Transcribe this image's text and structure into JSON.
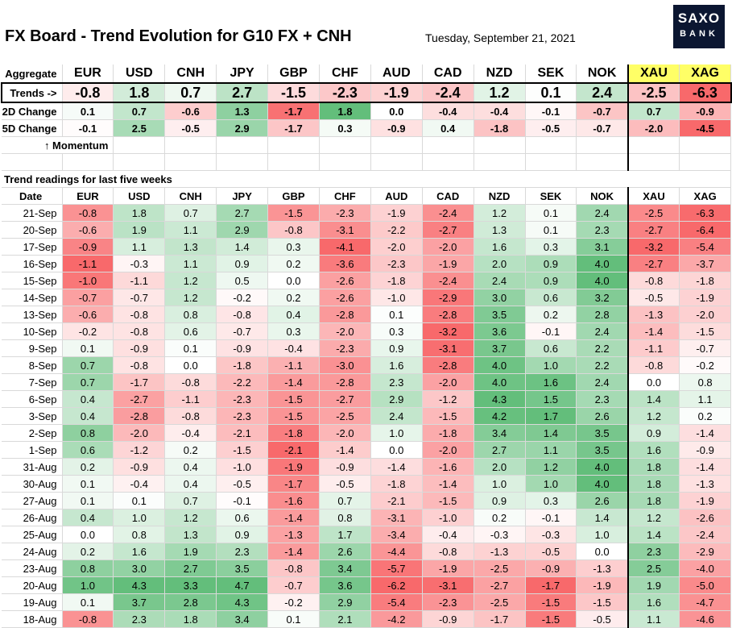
{
  "title": "FX Board - Trend Evolution for G10 FX + CNH",
  "date": "Tuesday, September 21, 2021",
  "logo": {
    "line1": "SAXO",
    "line2": "BANK"
  },
  "chart_data": {
    "type": "table",
    "aggregate_label": "Aggregate",
    "columns": [
      "EUR",
      "USD",
      "CNH",
      "JPY",
      "GBP",
      "CHF",
      "AUD",
      "CAD",
      "NZD",
      "SEK",
      "NOK",
      "XAU",
      "XAG"
    ],
    "summary_rows": [
      {
        "label": "Trends ->",
        "values": [
          -0.8,
          1.8,
          0.7,
          2.7,
          -1.5,
          -2.3,
          -1.9,
          -2.4,
          1.2,
          0.1,
          2.4,
          -2.5,
          -6.3
        ]
      },
      {
        "label": "2D Change",
        "values": [
          0.1,
          0.7,
          -0.6,
          1.3,
          -1.7,
          1.8,
          0.0,
          -0.4,
          -0.4,
          -0.1,
          -0.7,
          0.7,
          -0.9
        ]
      },
      {
        "label": "5D Change",
        "values": [
          -0.1,
          2.5,
          -0.5,
          2.9,
          -1.7,
          0.3,
          -0.9,
          0.4,
          -1.8,
          -0.5,
          -0.7,
          -2.0,
          -4.5
        ]
      }
    ],
    "momentum_label": "↑ Momentum",
    "weeks_title": "Trend readings for last five weeks",
    "date_header": "Date",
    "rows": [
      {
        "date": "21-Sep",
        "values": [
          -0.8,
          1.8,
          0.7,
          2.7,
          -1.5,
          -2.3,
          -1.9,
          -2.4,
          1.2,
          0.1,
          2.4,
          -2.5,
          -6.3
        ]
      },
      {
        "date": "20-Sep",
        "values": [
          -0.6,
          1.9,
          1.1,
          2.9,
          -0.8,
          -3.1,
          -2.2,
          -2.7,
          1.3,
          0.1,
          2.3,
          -2.7,
          -6.4
        ]
      },
      {
        "date": "17-Sep",
        "values": [
          -0.9,
          1.1,
          1.3,
          1.4,
          0.3,
          -4.1,
          -2.0,
          -2.0,
          1.6,
          0.3,
          3.1,
          -3.2,
          -5.4
        ]
      },
      {
        "date": "16-Sep",
        "values": [
          -1.1,
          -0.3,
          1.1,
          0.9,
          0.2,
          -3.6,
          -2.3,
          -1.9,
          2.0,
          0.9,
          4.0,
          -2.7,
          -3.7
        ]
      },
      {
        "date": "15-Sep",
        "values": [
          -1.0,
          -1.1,
          1.2,
          0.5,
          0.0,
          -2.6,
          -1.8,
          -2.4,
          2.4,
          0.9,
          4.0,
          -0.8,
          -1.8
        ]
      },
      {
        "date": "14-Sep",
        "values": [
          -0.7,
          -0.7,
          1.2,
          -0.2,
          0.2,
          -2.6,
          -1.0,
          -2.9,
          3.0,
          0.6,
          3.2,
          -0.5,
          -1.9
        ]
      },
      {
        "date": "13-Sep",
        "values": [
          -0.6,
          -0.8,
          0.8,
          -0.8,
          0.4,
          -2.8,
          0.1,
          -2.8,
          3.5,
          0.2,
          2.8,
          -1.3,
          -2.0
        ]
      },
      {
        "date": "10-Sep",
        "values": [
          -0.2,
          -0.8,
          0.6,
          -0.7,
          0.3,
          -2.0,
          0.3,
          -3.2,
          3.6,
          -0.1,
          2.4,
          -1.4,
          -1.5
        ]
      },
      {
        "date": "9-Sep",
        "values": [
          0.1,
          -0.9,
          0.1,
          -0.9,
          -0.4,
          -2.3,
          0.9,
          -3.1,
          3.7,
          0.6,
          2.2,
          -1.1,
          -0.7
        ]
      },
      {
        "date": "8-Sep",
        "values": [
          0.7,
          -0.8,
          0.0,
          -1.8,
          -1.1,
          -3.0,
          1.6,
          -2.8,
          4.0,
          1.0,
          2.2,
          -0.8,
          -0.2
        ]
      },
      {
        "date": "7-Sep",
        "values": [
          0.7,
          -1.7,
          -0.8,
          -2.2,
          -1.4,
          -2.8,
          2.3,
          -2.0,
          4.0,
          1.6,
          2.4,
          0.0,
          0.8
        ]
      },
      {
        "date": "6-Sep",
        "values": [
          0.4,
          -2.7,
          -1.1,
          -2.3,
          -1.5,
          -2.7,
          2.9,
          -1.2,
          4.3,
          1.5,
          2.3,
          1.4,
          1.1
        ]
      },
      {
        "date": "3-Sep",
        "values": [
          0.4,
          -2.8,
          -0.8,
          -2.3,
          -1.5,
          -2.5,
          2.4,
          -1.5,
          4.2,
          1.7,
          2.6,
          1.2,
          0.2
        ]
      },
      {
        "date": "2-Sep",
        "values": [
          0.8,
          -2.0,
          -0.4,
          -2.1,
          -1.8,
          -2.0,
          1.0,
          -1.8,
          3.4,
          1.4,
          3.5,
          0.9,
          -1.4
        ]
      },
      {
        "date": "1-Sep",
        "values": [
          0.6,
          -1.2,
          0.2,
          -1.5,
          -2.1,
          -1.4,
          0.0,
          -2.0,
          2.7,
          1.1,
          3.5,
          1.6,
          -0.9
        ]
      },
      {
        "date": "31-Aug",
        "values": [
          0.2,
          -0.9,
          0.4,
          -1.0,
          -1.9,
          -0.9,
          -1.4,
          -1.6,
          2.0,
          1.2,
          4.0,
          1.8,
          -1.4
        ]
      },
      {
        "date": "30-Aug",
        "values": [
          0.1,
          -0.4,
          0.4,
          -0.5,
          -1.7,
          -0.5,
          -1.8,
          -1.4,
          1.0,
          1.0,
          4.0,
          1.8,
          -1.3
        ]
      },
      {
        "date": "27-Aug",
        "values": [
          0.1,
          0.1,
          0.7,
          -0.1,
          -1.6,
          0.7,
          -2.1,
          -1.5,
          0.9,
          0.3,
          2.6,
          1.8,
          -1.9
        ]
      },
      {
        "date": "26-Aug",
        "values": [
          0.4,
          1.0,
          1.2,
          0.6,
          -1.4,
          0.8,
          -3.1,
          -1.0,
          0.2,
          -0.1,
          1.4,
          1.2,
          -2.6
        ]
      },
      {
        "date": "25-Aug",
        "values": [
          0.0,
          0.8,
          1.3,
          0.9,
          -1.3,
          1.7,
          -3.4,
          -0.4,
          -0.3,
          -0.3,
          1.0,
          1.4,
          -2.4
        ]
      },
      {
        "date": "24-Aug",
        "values": [
          0.2,
          1.6,
          1.9,
          2.3,
          -1.4,
          2.6,
          -4.4,
          -0.8,
          -1.3,
          -0.5,
          0.0,
          2.3,
          -2.9
        ]
      },
      {
        "date": "23-Aug",
        "values": [
          0.8,
          3.0,
          2.7,
          3.5,
          -0.8,
          3.4,
          -5.7,
          -1.9,
          -2.5,
          -0.9,
          -1.3,
          2.5,
          -4.0
        ]
      },
      {
        "date": "20-Aug",
        "values": [
          1.0,
          4.3,
          3.3,
          4.7,
          -0.7,
          3.6,
          -6.2,
          -3.1,
          -2.7,
          -1.7,
          -1.9,
          1.9,
          -5.0
        ]
      },
      {
        "date": "19-Aug",
        "values": [
          0.1,
          3.7,
          2.8,
          4.3,
          -0.2,
          2.9,
          -5.4,
          -2.3,
          -2.5,
          -1.5,
          -1.5,
          1.6,
          -4.7
        ]
      },
      {
        "date": "18-Aug",
        "values": [
          -0.8,
          2.3,
          1.8,
          3.4,
          0.1,
          2.1,
          -4.2,
          -0.9,
          -1.7,
          -1.5,
          -0.5,
          1.1,
          -4.6
        ]
      }
    ],
    "colors": {
      "positive": "#63be7b",
      "negative": "#f8696b",
      "neutral": "#ffffff",
      "header_highlight": "#ffff66"
    },
    "highlighted_columns": [
      "XAU",
      "XAG"
    ]
  }
}
